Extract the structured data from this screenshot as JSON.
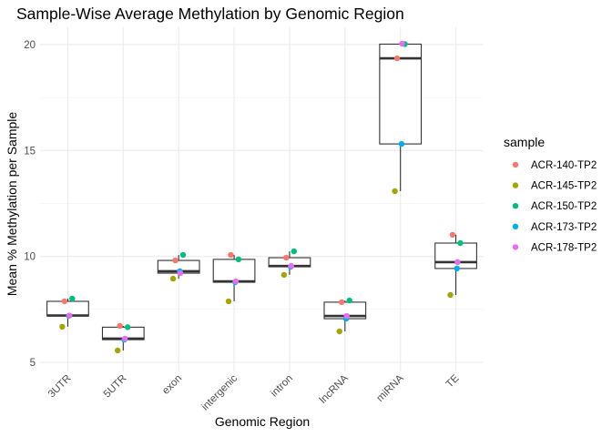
{
  "chart_data": {
    "type": "box",
    "title": "Sample-Wise Average Methylation by Genomic Region",
    "xlabel": "Genomic Region",
    "ylabel": "Mean % Methylation per Sample",
    "categories": [
      "3UTR",
      "5UTR",
      "exon",
      "intergenic",
      "intron",
      "lncRNA",
      "miRNA",
      "TE"
    ],
    "ylim": [
      5,
      20.5
    ],
    "yticks": [
      5,
      10,
      15,
      20
    ],
    "ytick_labels": [
      "5",
      "10",
      "15",
      "20"
    ],
    "grid": true,
    "legend": {
      "title": "sample",
      "placement": "right"
    },
    "series": [
      {
        "name": "ACR-140-TP2",
        "color": "#F8766D",
        "values": [
          7.88,
          6.72,
          9.81,
          10.07,
          9.94,
          7.84,
          19.35,
          11.02
        ]
      },
      {
        "name": "ACR-145-TP2",
        "color": "#A3A500",
        "values": [
          6.68,
          5.56,
          8.95,
          7.88,
          9.13,
          6.46,
          13.08,
          8.18
        ]
      },
      {
        "name": "ACR-150-TP2",
        "color": "#00BF7D",
        "values": [
          8.01,
          6.66,
          10.07,
          9.86,
          10.24,
          7.92,
          20.02,
          10.63
        ]
      },
      {
        "name": "ACR-173-TP2",
        "color": "#00B0F6",
        "values": [
          7.19,
          6.07,
          9.3,
          8.78,
          9.51,
          7.06,
          15.31,
          9.43
        ]
      },
      {
        "name": "ACR-178-TP2",
        "color": "#E76BF3",
        "values": [
          7.21,
          6.12,
          9.21,
          8.82,
          9.55,
          7.19,
          20.04,
          9.73
        ]
      }
    ],
    "jitter": [
      -0.06,
      -0.1,
      0.08,
      0.02,
      0.03
    ]
  }
}
